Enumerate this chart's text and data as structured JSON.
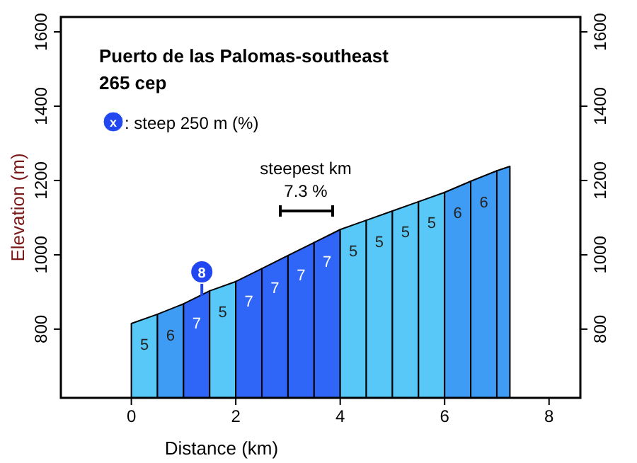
{
  "chart_data": {
    "type": "area",
    "title": "Puerto de las Palomas-southeast",
    "subtitle": "265 cep",
    "xlabel": "Distance (km)",
    "ylabel": "Elevation (m)",
    "xlim": [
      -1.35,
      8.6
    ],
    "xticks": [
      0,
      2,
      4,
      6,
      8
    ],
    "ylim": [
      615,
      1640
    ],
    "yticks": [
      800,
      1000,
      1200,
      1400,
      1600
    ],
    "y2lim": [
      615,
      1640
    ],
    "y2ticks": [
      800,
      1000,
      1200,
      1400,
      1600
    ],
    "grid": false,
    "series": [
      {
        "name": "5",
        "x": [
          0,
          0.5
        ],
        "values": [
          815,
          840
        ],
        "color": "#57c8f8"
      },
      {
        "name": "6",
        "x": [
          0.5,
          1
        ],
        "values": [
          840,
          868
        ],
        "color": "#3f9cf5"
      },
      {
        "name": "7",
        "x": [
          1,
          1.5
        ],
        "values": [
          868,
          903
        ],
        "color": "#2f66f7"
      },
      {
        "name": "5",
        "x": [
          1.5,
          2
        ],
        "values": [
          903,
          928
        ],
        "color": "#57c8f8"
      },
      {
        "name": "7",
        "x": [
          2,
          2.5
        ],
        "values": [
          928,
          963
        ],
        "color": "#2f66f7"
      },
      {
        "name": "7",
        "x": [
          2.5,
          3
        ],
        "values": [
          963,
          998
        ],
        "color": "#2f66f7"
      },
      {
        "name": "7",
        "x": [
          3,
          3.5
        ],
        "values": [
          998,
          1033
        ],
        "color": "#2f66f7"
      },
      {
        "name": "7",
        "x": [
          3.5,
          4
        ],
        "values": [
          1033,
          1068
        ],
        "color": "#2f66f7"
      },
      {
        "name": "5",
        "x": [
          4,
          4.5
        ],
        "values": [
          1068,
          1093
        ],
        "color": "#57c8f8"
      },
      {
        "name": "5",
        "x": [
          4.5,
          5
        ],
        "values": [
          1093,
          1118
        ],
        "color": "#57c8f8"
      },
      {
        "name": "5",
        "x": [
          5,
          5.5
        ],
        "values": [
          1118,
          1143
        ],
        "color": "#57c8f8"
      },
      {
        "name": "5",
        "x": [
          5.5,
          6
        ],
        "values": [
          1143,
          1168
        ],
        "color": "#57c8f8"
      },
      {
        "name": "6",
        "x": [
          6,
          6.5
        ],
        "values": [
          1168,
          1198
        ],
        "color": "#3f9cf5"
      },
      {
        "name": "6",
        "x": [
          6.5,
          7
        ],
        "values": [
          1198,
          1226
        ],
        "color": "#3f9cf5"
      },
      {
        "x": [
          7,
          7.25
        ],
        "values": [
          1226,
          1238
        ],
        "color": "#3f9cf5"
      }
    ],
    "annotations": [
      "x",
      ": steep 250 m (%)",
      {
        "text": "8",
        "x": 1.35,
        "y": 954
      },
      "steepest km",
      "7.3 %"
    ]
  }
}
